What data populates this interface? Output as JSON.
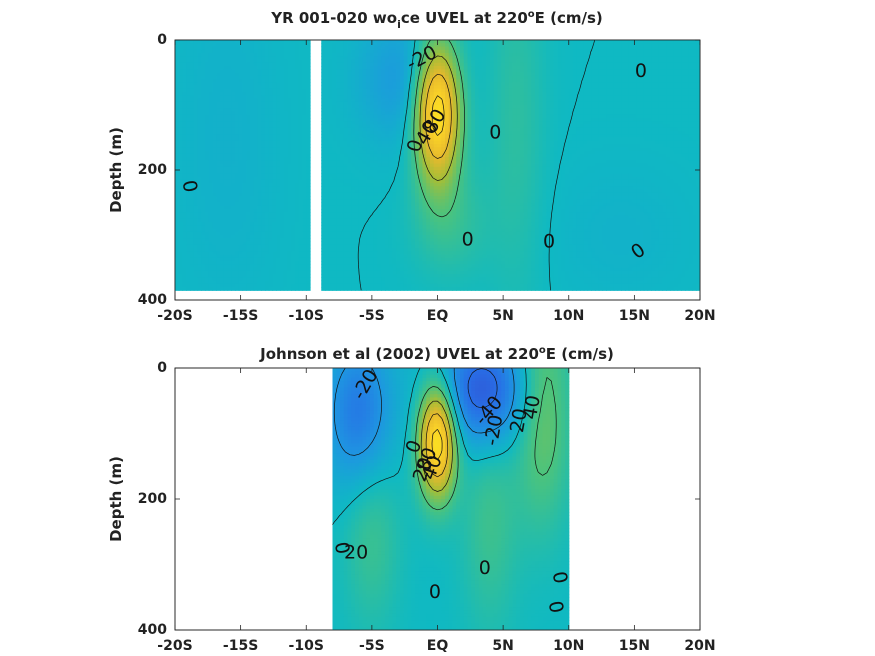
{
  "chart_data": [
    {
      "type": "heatmap",
      "title_parts": {
        "pre": "YR 001-020 wo",
        "sub": "i",
        "mid": "ce UVEL at 220",
        "sup": "o",
        "post": "E (cm/s)"
      },
      "ylabel": "Depth (m)",
      "x_ticks": [
        "-20S",
        "-15S",
        "-10S",
        "-5S",
        "EQ",
        "5N",
        "10N",
        "15N",
        "20N"
      ],
      "y_ticks": [
        "0",
        "200",
        "400"
      ],
      "xlim": [
        -20,
        20
      ],
      "ylim": [
        0,
        400
      ],
      "data_xrange": [
        -20,
        20
      ],
      "data_depth_max": 385,
      "gap_x": [
        -9.8,
        -8.9
      ],
      "background_value": 0,
      "features": [
        {
          "x": 0,
          "depth": 110,
          "value": 95,
          "sx": 1.2,
          "sy": 75
        },
        {
          "x": -2.5,
          "depth": 60,
          "value": -18,
          "sx": 2.5,
          "sy": 70
        },
        {
          "x": 6,
          "depth": 120,
          "value": 10,
          "sx": 1.5,
          "sy": 200
        },
        {
          "x": 1,
          "depth": 280,
          "value": 12,
          "sx": 2,
          "sy": 60
        },
        {
          "x": -16,
          "depth": 150,
          "value": -5,
          "sx": 3,
          "sy": 200
        },
        {
          "x": 14,
          "depth": 300,
          "value": -4,
          "sx": 4,
          "sy": 80
        }
      ],
      "contour_labels": [
        {
          "x": -1.2,
          "depth": 28,
          "text": "-20",
          "rot": -28
        },
        {
          "x": 15.5,
          "depth": 48,
          "text": "0",
          "rot": 0
        },
        {
          "x": -0.2,
          "depth": 125,
          "text": "80",
          "rot": -60
        },
        {
          "x": -0.8,
          "depth": 143,
          "text": "40",
          "rot": -60
        },
        {
          "x": -1.7,
          "depth": 163,
          "text": "0",
          "rot": -75
        },
        {
          "x": 4.4,
          "depth": 142,
          "text": "0",
          "rot": 0
        },
        {
          "x": -18.9,
          "depth": 225,
          "text": "0",
          "rot": 80
        },
        {
          "x": 2.3,
          "depth": 307,
          "text": "0",
          "rot": 0
        },
        {
          "x": 8.5,
          "depth": 310,
          "text": "0",
          "rot": 0
        },
        {
          "x": 15.3,
          "depth": 325,
          "text": "0",
          "rot": -35
        }
      ]
    },
    {
      "type": "heatmap",
      "title_parts": {
        "pre": "Johnson et al (2002) UVEL at 220",
        "sub": "",
        "mid": "",
        "sup": "o",
        "post": "E (cm/s)"
      },
      "ylabel": "Depth (m)",
      "x_ticks": [
        "-20S",
        "-15S",
        "-10S",
        "-5S",
        "EQ",
        "5N",
        "10N",
        "15N",
        "20N"
      ],
      "y_ticks": [
        "0",
        "200",
        "400"
      ],
      "xlim": [
        -20,
        20
      ],
      "ylim": [
        0,
        400
      ],
      "data_xrange": [
        -8,
        10
      ],
      "data_depth_max": 400,
      "background_value": 0,
      "features": [
        {
          "x": 0,
          "depth": 110,
          "value": 95,
          "sx": 1.0,
          "sy": 60
        },
        {
          "x": 3.5,
          "depth": 35,
          "value": -50,
          "sx": 2.5,
          "sy": 60
        },
        {
          "x": -6,
          "depth": 70,
          "value": -35,
          "sx": 1.8,
          "sy": 80
        },
        {
          "x": 8,
          "depth": 60,
          "value": 30,
          "sx": 1.5,
          "sy": 120
        },
        {
          "x": -5,
          "depth": 250,
          "value": 15,
          "sx": 1.5,
          "sy": 100
        },
        {
          "x": 4,
          "depth": 230,
          "value": 15,
          "sx": 1.5,
          "sy": 120
        }
      ],
      "contour_labels": [
        {
          "x": -5.5,
          "depth": 25,
          "text": "-20",
          "rot": -60
        },
        {
          "x": 3.9,
          "depth": 65,
          "text": "-40",
          "rot": -50
        },
        {
          "x": 4.3,
          "depth": 95,
          "text": "-20",
          "rot": -80
        },
        {
          "x": 6.2,
          "depth": 80,
          "text": "20",
          "rot": -80
        },
        {
          "x": 7.2,
          "depth": 60,
          "text": "40",
          "rot": -80
        },
        {
          "x": -1.8,
          "depth": 120,
          "text": "0",
          "rot": -70
        },
        {
          "x": -0.8,
          "depth": 140,
          "text": "80",
          "rot": -70
        },
        {
          "x": -0.4,
          "depth": 152,
          "text": "40",
          "rot": -70
        },
        {
          "x": -1.1,
          "depth": 155,
          "text": "20",
          "rot": -70
        },
        {
          "x": -6.2,
          "depth": 282,
          "text": "20",
          "rot": 0
        },
        {
          "x": -7.3,
          "depth": 275,
          "text": "0",
          "rot": 80
        },
        {
          "x": 3.6,
          "depth": 305,
          "text": "0",
          "rot": 0
        },
        {
          "x": -0.2,
          "depth": 342,
          "text": "0",
          "rot": 0
        },
        {
          "x": 9.3,
          "depth": 320,
          "text": "0",
          "rot": 80
        },
        {
          "x": 9.0,
          "depth": 365,
          "text": "0",
          "rot": 80
        }
      ]
    }
  ]
}
